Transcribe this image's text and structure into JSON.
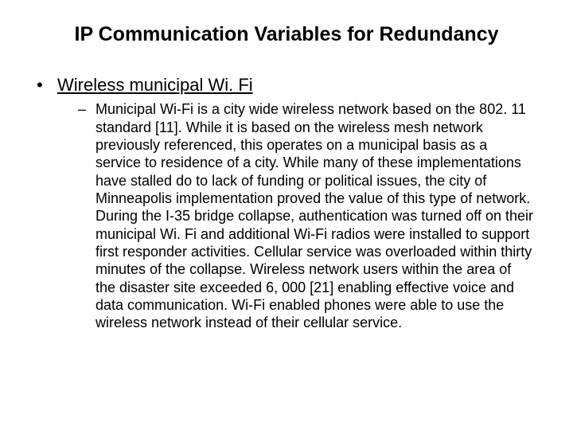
{
  "slide": {
    "title": "IP Communication Variables for Redundancy",
    "bullet1": {
      "marker": "•",
      "text": "Wireless municipal Wi. Fi"
    },
    "bullet2": {
      "marker": "–",
      "text": "Municipal Wi-Fi is a city wide wireless network based on the 802. 11 standard [11]. While it is based on the wireless mesh network previously referenced, this operates on a municipal basis as a service to residence of a city. While many of these implementations have stalled do to lack of funding or political issues, the city of Minneapolis implementation proved the value of this type of network. During the I-35 bridge collapse, authentication was turned off on their municipal Wi. Fi and additional Wi-Fi radios were installed to support first responder activities. Cellular service was overloaded within thirty minutes of the collapse. Wireless network users within the area of the disaster site exceeded 6, 000 [21] enabling effective voice and data communication. Wi-Fi enabled phones were able to use the wireless network instead of their cellular service."
    }
  }
}
